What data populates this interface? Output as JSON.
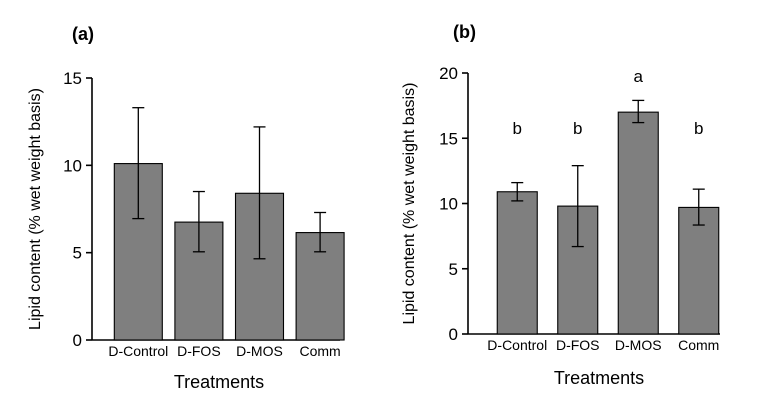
{
  "chart_data": [
    {
      "type": "bar",
      "panel_label": "(a)",
      "categories": [
        "D-Control",
        "D-FOS",
        "D-MOS",
        "Comm"
      ],
      "values": [
        10.1,
        6.75,
        8.4,
        6.15
      ],
      "error_low": [
        6.95,
        5.05,
        4.65,
        5.05
      ],
      "error_high": [
        13.3,
        8.5,
        12.2,
        7.3
      ],
      "significance": [],
      "ylim": [
        0,
        15
      ],
      "yticks": [
        0,
        5,
        10,
        15
      ],
      "xlabel": "Treatments",
      "ylabel": "Lipid content (% wet weight basis)",
      "bar_color": "#7f7f7f"
    },
    {
      "type": "bar",
      "panel_label": "(b)",
      "categories": [
        "D-Control",
        "D-FOS",
        "D-MOS",
        "Comm"
      ],
      "values": [
        10.9,
        9.8,
        17.0,
        9.7
      ],
      "error_low": [
        10.2,
        6.7,
        16.2,
        8.35
      ],
      "error_high": [
        11.6,
        12.9,
        17.9,
        11.1
      ],
      "significance": [
        "b",
        "b",
        "a",
        "b"
      ],
      "ylim": [
        0,
        20
      ],
      "yticks": [
        0,
        5,
        10,
        15,
        20
      ],
      "xlabel": "Treatments",
      "ylabel": "Lipid content (% wet weight basis)",
      "bar_color": "#7f7f7f"
    }
  ]
}
